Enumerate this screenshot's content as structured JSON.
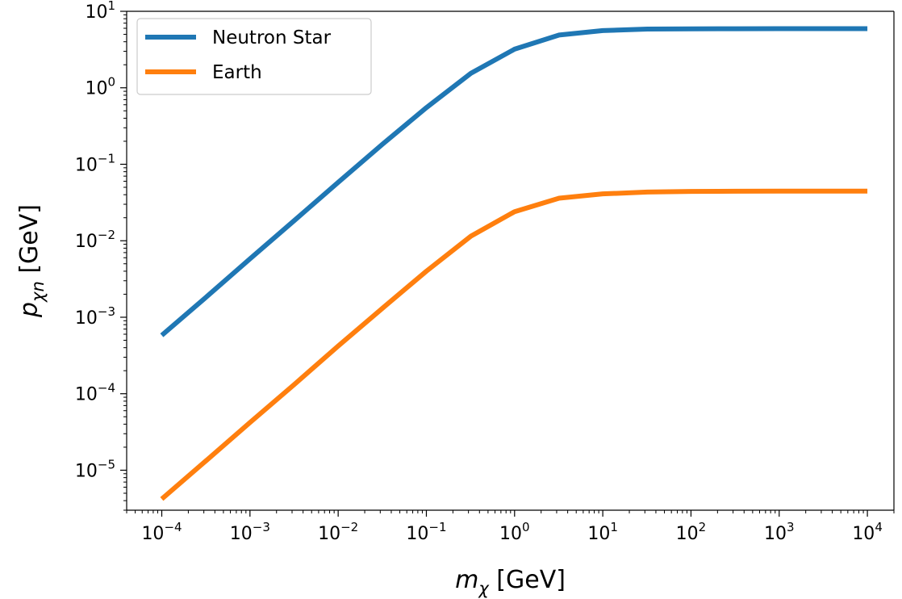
{
  "chart_data": {
    "type": "line",
    "title": "",
    "xlabel": {
      "var": "m",
      "sub": "χ",
      "unit": " [GeV]"
    },
    "ylabel": {
      "var": "p",
      "sub": "χn",
      "unit": " [GeV]"
    },
    "xscale": "log",
    "yscale": "log",
    "xlim": [
      4e-05,
      20000
    ],
    "ylim": [
      3e-06,
      10
    ],
    "x_ticks": [
      {
        "value": 0.0001,
        "base": "10",
        "exp": "−4"
      },
      {
        "value": 0.001,
        "base": "10",
        "exp": "−3"
      },
      {
        "value": 0.01,
        "base": "10",
        "exp": "−2"
      },
      {
        "value": 0.1,
        "base": "10",
        "exp": "−1"
      },
      {
        "value": 1,
        "base": "10",
        "exp": "0"
      },
      {
        "value": 10,
        "base": "10",
        "exp": "1"
      },
      {
        "value": 100,
        "base": "10",
        "exp": "2"
      },
      {
        "value": 1000,
        "base": "10",
        "exp": "3"
      },
      {
        "value": 10000,
        "base": "10",
        "exp": "4"
      }
    ],
    "y_ticks": [
      {
        "value": 1e-05,
        "base": "10",
        "exp": "−5"
      },
      {
        "value": 0.0001,
        "base": "10",
        "exp": "−4"
      },
      {
        "value": 0.001,
        "base": "10",
        "exp": "−3"
      },
      {
        "value": 0.01,
        "base": "10",
        "exp": "−2"
      },
      {
        "value": 0.1,
        "base": "10",
        "exp": "−1"
      },
      {
        "value": 1,
        "base": "10",
        "exp": "0"
      },
      {
        "value": 10,
        "base": "10",
        "exp": "1"
      }
    ],
    "grid": false,
    "legend_position": "top-left",
    "series": [
      {
        "name": "Neutron Star",
        "color": "#1f77b4",
        "x": [
          0.0001,
          0.00032,
          0.001,
          0.0032,
          0.01,
          0.032,
          0.1,
          0.32,
          1,
          3.2,
          10,
          32,
          100,
          316,
          1000,
          3162,
          10000
        ],
        "y": [
          0.00058,
          0.00184,
          0.0058,
          0.0185,
          0.058,
          0.184,
          0.55,
          1.55,
          3.2,
          4.9,
          5.6,
          5.85,
          5.9,
          5.92,
          5.93,
          5.93,
          5.93
        ]
      },
      {
        "name": "Earth",
        "color": "#ff7f0e",
        "x": [
          0.0001,
          0.00032,
          0.001,
          0.0032,
          0.01,
          0.032,
          0.1,
          0.32,
          1,
          3.2,
          10,
          32,
          100,
          316,
          1000,
          3162,
          10000
        ],
        "y": [
          4.2e-06,
          1.34e-05,
          4.2e-05,
          0.000133,
          0.00042,
          0.00132,
          0.004,
          0.0115,
          0.024,
          0.036,
          0.041,
          0.0433,
          0.0442,
          0.0444,
          0.0445,
          0.0445,
          0.0445
        ]
      }
    ]
  }
}
